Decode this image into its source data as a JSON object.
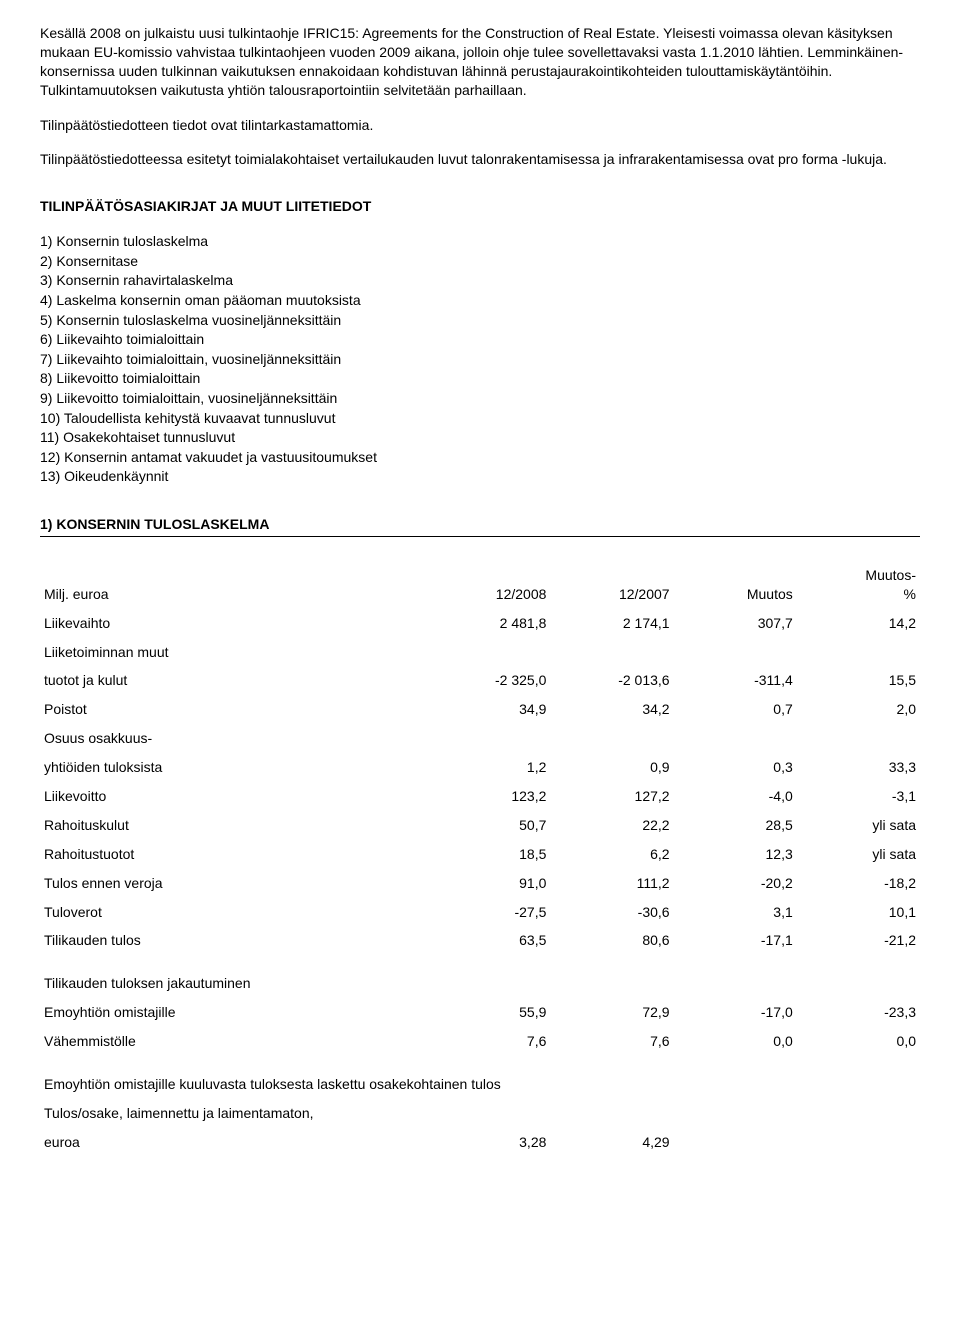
{
  "paragraphs": {
    "p1": "Kesällä 2008 on julkaistu uusi tulkintaohje IFRIC15: Agreements for the Construction of Real Estate. Yleisesti voimassa olevan käsityksen mukaan EU-komissio vahvistaa tulkintaohjeen vuoden 2009 aikana, jolloin ohje tulee sovellettavaksi vasta 1.1.2010 lähtien. Lemminkäinen-konsernissa uuden tulkinnan vaikutuksen ennakoidaan kohdistuvan lähinnä perustajaurakointikohteiden tulouttamiskäytäntöihin. Tulkintamuutoksen vaikutusta yhtiön talousraportointiin selvitetään parhaillaan.",
    "p2": "Tilinpäätöstiedotteen tiedot ovat tilintarkastamattomia.",
    "p3": "Tilinpäätöstiedotteessa esitetyt toimialakohtaiset vertailukauden luvut talonrakentamisessa ja infrarakentamisessa ovat pro forma -lukuja."
  },
  "section1_title": "TILINPÄÄTÖSASIAKIRJAT JA MUUT LIITETIEDOT",
  "list_items": [
    "1) Konsernin tuloslaskelma",
    "2) Konsernitase",
    "3) Konsernin rahavirtalaskelma",
    "4) Laskelma konsernin oman pääoman muutoksista",
    "5) Konsernin tuloslaskelma vuosineljänneksittäin",
    "6) Liikevaihto toimialoittain",
    "7) Liikevaihto toimialoittain, vuosineljänneksittäin",
    "8) Liikevoitto toimialoittain",
    "9) Liikevoitto toimialoittain, vuosineljänneksittäin",
    "10) Taloudellista kehitystä kuvaavat tunnusluvut",
    "11) Osakekohtaiset tunnusluvut",
    "12) Konsernin antamat vakuudet ja vastuusitoumukset",
    "13) Oikeudenkäynnit"
  ],
  "table1": {
    "title": "1) KONSERNIN TULOSLASKELMA",
    "headers": {
      "c0": "Milj. euroa",
      "c1": "12/2008",
      "c2": "12/2007",
      "c3": "Muutos",
      "c4a": "Muutos-",
      "c4b": "%"
    },
    "rows": [
      {
        "label": "Liikevaihto",
        "v": [
          "2 481,8",
          "2 174,1",
          "307,7",
          "14,2"
        ]
      },
      {
        "label": "Liiketoiminnan muut",
        "v": null
      },
      {
        "label": "tuotot ja kulut",
        "v": [
          "-2 325,0",
          "-2 013,6",
          "-311,4",
          "15,5"
        ]
      },
      {
        "label": "Poistot",
        "v": [
          "34,9",
          "34,2",
          "0,7",
          "2,0"
        ]
      },
      {
        "label": "Osuus osakkuus-",
        "v": null
      },
      {
        "label": "yhtiöiden tuloksista",
        "v": [
          "1,2",
          "0,9",
          "0,3",
          "33,3"
        ]
      },
      {
        "label": "Liikevoitto",
        "v": [
          "123,2",
          "127,2",
          "-4,0",
          "-3,1"
        ]
      },
      {
        "label": "Rahoituskulut",
        "v": [
          "50,7",
          "22,2",
          "28,5",
          "yli sata"
        ]
      },
      {
        "label": "Rahoitustuotot",
        "v": [
          "18,5",
          "6,2",
          "12,3",
          "yli sata"
        ]
      },
      {
        "label": "Tulos ennen veroja",
        "v": [
          "91,0",
          "111,2",
          "-20,2",
          "-18,2"
        ]
      },
      {
        "label": "Tuloverot",
        "v": [
          "-27,5",
          "-30,6",
          "3,1",
          "10,1"
        ]
      },
      {
        "label": "Tilikauden tulos",
        "v": [
          "63,5",
          "80,6",
          "-17,1",
          "-21,2"
        ]
      }
    ],
    "section2_label": "Tilikauden tuloksen jakautuminen",
    "rows2": [
      {
        "label": "Emoyhtiön omistajille",
        "v": [
          "55,9",
          "72,9",
          "-17,0",
          "-23,3"
        ]
      },
      {
        "label": "Vähemmistölle",
        "v": [
          "7,6",
          "7,6",
          "0,0",
          "0,0"
        ]
      }
    ],
    "section3_label": "Emoyhtiön omistajille kuuluvasta tuloksesta laskettu osakekohtainen tulos",
    "rows3": [
      {
        "label": "Tulos/osake, laimennettu ja laimentamaton,",
        "v": null
      },
      {
        "label": "euroa",
        "v": [
          "3,28",
          "4,29",
          "",
          ""
        ]
      }
    ]
  }
}
